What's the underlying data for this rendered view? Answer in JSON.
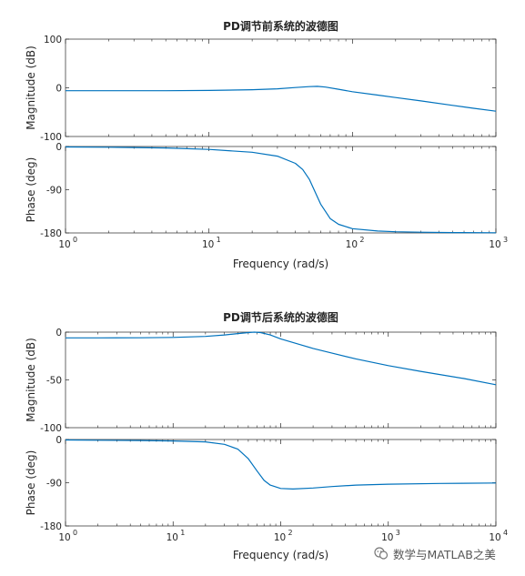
{
  "chart_data": [
    {
      "type": "line",
      "title": "PD调节前系统的波德图",
      "xlabel": "Frequency  (rad/s)",
      "xscale": "log",
      "xlim": [
        1,
        1000
      ],
      "x_ticks": [
        1,
        10,
        100,
        1000
      ],
      "x_tick_labels": [
        [
          "10",
          "0"
        ],
        [
          "10",
          "1"
        ],
        [
          "10",
          "2"
        ],
        [
          "10",
          "3"
        ]
      ],
      "subplots": [
        {
          "ylabel": "Magnitude (dB)",
          "ylim": [
            -100,
            100
          ],
          "y_ticks": [
            -100,
            0,
            100
          ],
          "y_tick_labels": [
            "-100",
            "0",
            "100"
          ],
          "series": [
            {
              "x": [
                1,
                2,
                5,
                10,
                20,
                30,
                40,
                50,
                57,
                65,
                80,
                100,
                150,
                200,
                300,
                500,
                700,
                1000
              ],
              "y": [
                -6,
                -6,
                -5.9,
                -5.5,
                -4,
                -2,
                0.5,
                2.5,
                3,
                1.5,
                -3,
                -8,
                -15,
                -20,
                -27,
                -36,
                -42,
                -48
              ]
            }
          ]
        },
        {
          "ylabel": "Phase (deg)",
          "ylim": [
            -180,
            0
          ],
          "y_ticks": [
            -180,
            -90,
            0
          ],
          "y_tick_labels": [
            "-180",
            "-90",
            "0"
          ],
          "series": [
            {
              "x": [
                1,
                2,
                5,
                10,
                20,
                30,
                40,
                45,
                50,
                55,
                60,
                70,
                80,
                100,
                150,
                200,
                300,
                500,
                1000
              ],
              "y": [
                -1,
                -1.5,
                -3,
                -6,
                -12,
                -20,
                -35,
                -48,
                -68,
                -95,
                -120,
                -150,
                -162,
                -171,
                -176,
                -177.5,
                -178.5,
                -179.2,
                -179.6
              ]
            }
          ]
        }
      ]
    },
    {
      "type": "line",
      "title": "PD调节后系统的波德图",
      "xlabel": "Frequency  (rad/s)",
      "xscale": "log",
      "xlim": [
        1,
        10000
      ],
      "x_ticks": [
        1,
        10,
        100,
        1000,
        10000
      ],
      "x_tick_labels": [
        [
          "10",
          "0"
        ],
        [
          "10",
          "1"
        ],
        [
          "10",
          "2"
        ],
        [
          "10",
          "3"
        ],
        [
          "10",
          "4"
        ]
      ],
      "subplots": [
        {
          "ylabel": "Magnitude (dB)",
          "ylim": [
            -100,
            0
          ],
          "y_ticks": [
            -100,
            -50,
            0
          ],
          "y_tick_labels": [
            "-100",
            "-50",
            "0"
          ],
          "series": [
            {
              "x": [
                1,
                2,
                5,
                10,
                20,
                30,
                40,
                50,
                57,
                65,
                80,
                100,
                150,
                200,
                300,
                500,
                1000,
                2000,
                5000,
                10000
              ],
              "y": [
                -6,
                -6,
                -5.9,
                -5.5,
                -4.5,
                -3,
                -1.5,
                -0.5,
                0,
                -0.5,
                -3,
                -7,
                -13,
                -17,
                -22,
                -28,
                -35,
                -41,
                -48.5,
                -55
              ]
            }
          ]
        },
        {
          "ylabel": "Phase (deg)",
          "ylim": [
            -180,
            0
          ],
          "y_ticks": [
            -180,
            -90,
            0
          ],
          "y_tick_labels": [
            "-180",
            "-90",
            "0"
          ],
          "series": [
            {
              "x": [
                1,
                2,
                5,
                10,
                20,
                30,
                40,
                50,
                60,
                70,
                80,
                100,
                130,
                200,
                300,
                500,
                1000,
                3000,
                10000
              ],
              "y": [
                -1,
                -1.5,
                -2,
                -3,
                -5,
                -10,
                -20,
                -40,
                -65,
                -85,
                -95,
                -102,
                -103,
                -101,
                -98,
                -95,
                -93,
                -91.5,
                -90.5
              ]
            }
          ]
        }
      ]
    }
  ],
  "watermark": {
    "text": "数学与MATLAB之美",
    "icon": "wechat-icon"
  },
  "colors": {
    "line": "#0072BD",
    "axes": "#262626",
    "background": "#ffffff"
  }
}
